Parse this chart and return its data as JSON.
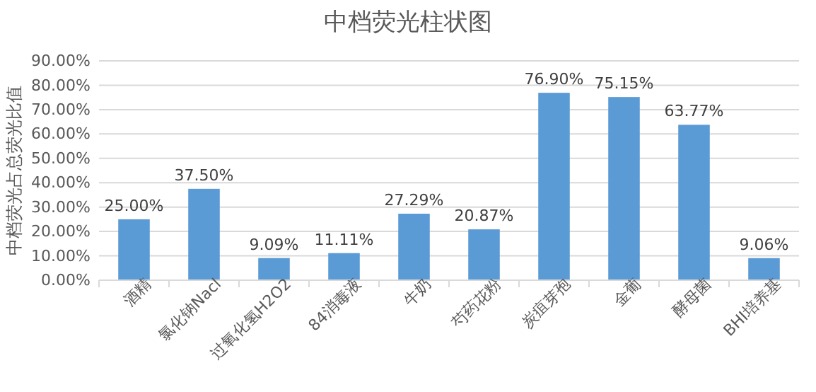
{
  "chart_data": {
    "type": "bar",
    "title": "中档荧光柱状图",
    "ylabel": "中档荧光占总荧光比值",
    "categories": [
      "酒精",
      "氯化钠Nacl",
      "过氧化氢H2O2",
      "84消毒液",
      "牛奶",
      "芍药花粉",
      "炭疽芽孢",
      "金葡",
      "酵母菌",
      "BHI培养基"
    ],
    "values": [
      25.0,
      37.5,
      9.09,
      11.11,
      27.29,
      20.87,
      76.9,
      75.15,
      63.77,
      9.06
    ],
    "value_labels": [
      "25.00%",
      "37.50%",
      "9.09%",
      "11.11%",
      "27.29%",
      "20.87%",
      "76.90%",
      "75.15%",
      "63.77%",
      "9.06%"
    ],
    "color": "#5b9bd5",
    "ylim": [
      0,
      90
    ],
    "yticks": [
      {
        "value": 0,
        "label": "0.00%"
      },
      {
        "value": 10,
        "label": "10.00%"
      },
      {
        "value": 20,
        "label": "20.00%"
      },
      {
        "value": 30,
        "label": "30.00%"
      },
      {
        "value": 40,
        "label": "40.00%"
      },
      {
        "value": 50,
        "label": "50.00%"
      },
      {
        "value": 60,
        "label": "60.00%"
      },
      {
        "value": 70,
        "label": "70.00%"
      },
      {
        "value": 80,
        "label": "80.00%"
      },
      {
        "value": 90,
        "label": "90.00%"
      }
    ],
    "grid": "y"
  }
}
